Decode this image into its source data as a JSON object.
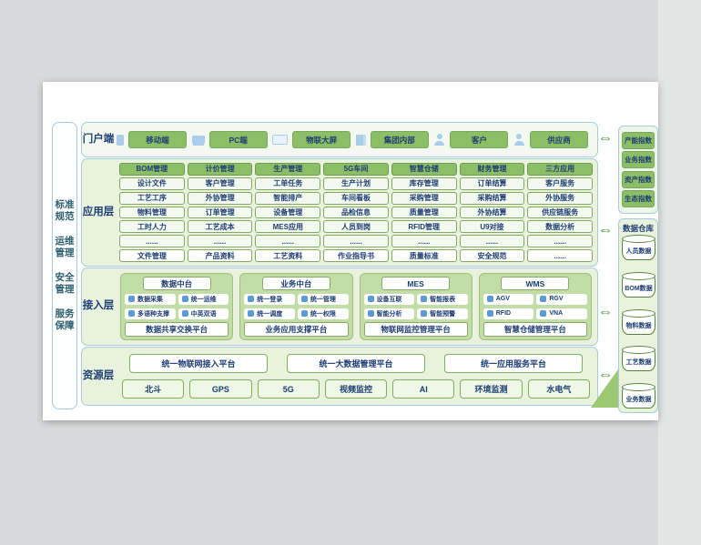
{
  "colors": {
    "bg-gray": "#d8dadb",
    "navy": "#1d3d73",
    "teal": "#2c5f6e",
    "line-blue": "#a7cbdd",
    "panel-green": "#e9f2dd",
    "accent-green": "#8cbe68",
    "group-green": "#c3dda6",
    "icon-blue": "#a9cdea",
    "pill-blue": "#5b9bd5",
    "arrow-green": "#4f8f3a",
    "wedge-green": "#9cc873"
  },
  "icons": {
    "arrow": "⇔"
  },
  "left_rail": {
    "items": [
      "标准规范",
      "运维管理",
      "安全管理",
      "服务保障"
    ]
  },
  "portal": {
    "label": "门户端",
    "items": [
      {
        "label": "移动端",
        "icon": "mobile-icon"
      },
      {
        "label": "PC端",
        "icon": "monitor-icon"
      },
      {
        "label": "物联大屏",
        "icon": "iot-screen-icon"
      },
      {
        "label": "集团内部",
        "icon": "building-icon"
      },
      {
        "label": "客户",
        "icon": "customer-person-icon"
      },
      {
        "label": "供应商",
        "icon": "supplier-person-icon"
      }
    ]
  },
  "app": {
    "label": "应用层",
    "columns": [
      {
        "header": "BOM管理",
        "items": [
          "设计文件",
          "工艺工序",
          "物料管理",
          "工时人力",
          "......"
        ],
        "footer": "文件管理"
      },
      {
        "header": "计价管理",
        "items": [
          "客户管理",
          "外协管理",
          "订单管理",
          "工艺成本",
          "......"
        ],
        "footer": "产品资料"
      },
      {
        "header": "生产管理",
        "items": [
          "工单任务",
          "智能排产",
          "设备管理",
          "MES应用",
          "......"
        ],
        "footer": "工艺资料"
      },
      {
        "header": "5G车间",
        "items": [
          "生产计划",
          "车间看板",
          "品检信息",
          "人员到岗",
          "......"
        ],
        "footer": "作业指导书"
      },
      {
        "header": "智慧仓储",
        "items": [
          "库存管理",
          "采购管理",
          "质量管理",
          "RFID管理",
          "......"
        ],
        "footer": "质量标准"
      },
      {
        "header": "财务管理",
        "items": [
          "订单结算",
          "采购结算",
          "外协结算",
          "U9对接",
          "......"
        ],
        "footer": "安全规范"
      },
      {
        "header": "三方应用",
        "items": [
          "客户服务",
          "外协服务",
          "供应链服务",
          "数据分析",
          "......"
        ],
        "footer": "......"
      }
    ]
  },
  "access": {
    "label": "接入层",
    "groups": [
      {
        "header": "数据中台",
        "pills": [
          {
            "label": "数据采集",
            "icon": "data-collect-icon"
          },
          {
            "label": "统一运维",
            "icon": "ops-icon"
          },
          {
            "label": "多语种支撑",
            "icon": "language-icon"
          },
          {
            "label": "中英双语",
            "icon": "bilingual-icon"
          }
        ],
        "footer": "数据共享交换平台"
      },
      {
        "header": "业务中台",
        "pills": [
          {
            "label": "统一登录",
            "icon": "user-login-icon"
          },
          {
            "label": "统一管理",
            "icon": "manage-icon"
          },
          {
            "label": "统一调度",
            "icon": "schedule-icon"
          },
          {
            "label": "统一权限",
            "icon": "lock-icon"
          }
        ],
        "footer": "业务应用支撑平台"
      },
      {
        "header": "MES",
        "pills": [
          {
            "label": "设备互联",
            "icon": "device-link-icon"
          },
          {
            "label": "智能报表",
            "icon": "report-icon"
          },
          {
            "label": "智能分析",
            "icon": "analysis-icon"
          },
          {
            "label": "智能预警",
            "icon": "alert-icon"
          }
        ],
        "footer": "物联网监控管理平台"
      },
      {
        "header": "WMS",
        "pills": [
          {
            "label": "AGV",
            "icon": "agv-icon"
          },
          {
            "label": "RGV",
            "icon": "rgv-icon"
          },
          {
            "label": "RFID",
            "icon": "rfid-icon"
          },
          {
            "label": "VNA",
            "icon": "vna-icon"
          }
        ],
        "footer": "智慧仓储管理平台"
      }
    ]
  },
  "resource": {
    "label": "资源层",
    "platforms": [
      "统一物联网接入平台",
      "统一大数据管理平台",
      "统一应用服务平台"
    ],
    "items": [
      "北斗",
      "GPS",
      "5G",
      "视频监控",
      "AI",
      "环境监测",
      "水电气"
    ]
  },
  "right_rail": {
    "indices": [
      "产能指数",
      "业务指数",
      "资产指数",
      "生态指数"
    ],
    "warehouse_title": "数据仓库",
    "databases": [
      "人员数据",
      "BOM数据",
      "物料数据",
      "工艺数据",
      "业务数据"
    ]
  }
}
